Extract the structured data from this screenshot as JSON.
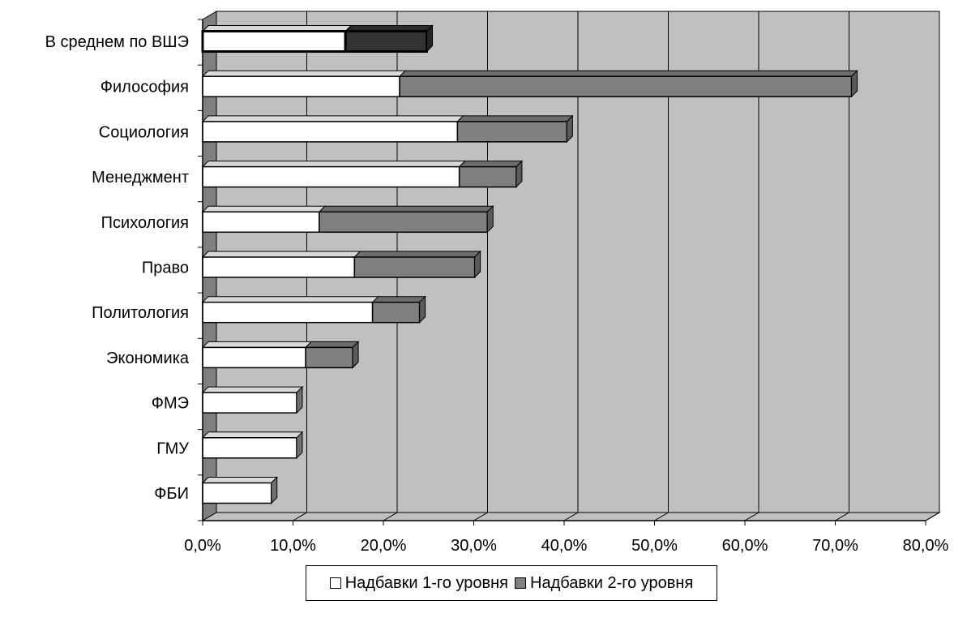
{
  "chart_data": {
    "type": "bar",
    "orientation": "horizontal",
    "stacked": true,
    "three_d": true,
    "categories": [
      "В среднем по ВШЭ",
      "Философия",
      "Социология",
      "Менеджмент",
      "Психология",
      "Право",
      "Политология",
      "Экономика",
      "ФМЭ",
      "ГМУ",
      "ФБИ"
    ],
    "series": [
      {
        "name": "Надбавки 1-го уровня",
        "color": "#ffffff",
        "values": [
          15.8,
          21.8,
          28.2,
          28.4,
          12.9,
          16.8,
          18.8,
          11.4,
          10.4,
          10.4,
          7.6
        ]
      },
      {
        "name": "Надбавки 2-го уровня",
        "color": "#808080",
        "values": [
          9.0,
          50.0,
          12.1,
          6.3,
          18.6,
          13.3,
          5.2,
          5.2,
          0,
          0,
          0
        ]
      }
    ],
    "highlight": {
      "category": "В среднем по ВШЭ",
      "series2_color": "#333333"
    },
    "xticks": [
      "0,0%",
      "10,0%",
      "20,0%",
      "30,0%",
      "40,0%",
      "50,0%",
      "60,0%",
      "70,0%",
      "80,0%"
    ],
    "xlim": [
      0,
      80
    ],
    "grid": true,
    "plot_background": "#c0c0c0",
    "legend_position": "bottom"
  }
}
